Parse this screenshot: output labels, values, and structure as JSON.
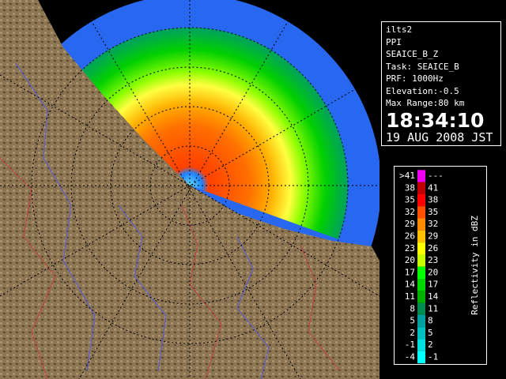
{
  "station": "ilts2",
  "mode": "PPI",
  "product": "SEAICE_B_Z",
  "task": "Task: SEAICE_B",
  "prf": "PRF: 1000Hz",
  "elevation": "Elevation:-0.5",
  "max_range": "Max Range:80 km",
  "time": "18:34:10",
  "date": "19 AUG 2008 JST",
  "legend": {
    "title": "Reflectivity in dBZ",
    "rows": [
      {
        "lower": ">41",
        "upper": "---",
        "color": "#f000f0"
      },
      {
        "lower": "38",
        "upper": "41",
        "color": "#c00000"
      },
      {
        "lower": "35",
        "upper": "38",
        "color": "#ff0000"
      },
      {
        "lower": "32",
        "upper": "35",
        "color": "#ff5000"
      },
      {
        "lower": "29",
        "upper": "32",
        "color": "#ff8c00"
      },
      {
        "lower": "26",
        "upper": "29",
        "color": "#ffc000"
      },
      {
        "lower": "23",
        "upper": "26",
        "color": "#ffff00"
      },
      {
        "lower": "20",
        "upper": "23",
        "color": "#c8ff00"
      },
      {
        "lower": "17",
        "upper": "20",
        "color": "#00ff00"
      },
      {
        "lower": "14",
        "upper": "17",
        "color": "#00d800"
      },
      {
        "lower": "11",
        "upper": "14",
        "color": "#00b000"
      },
      {
        "lower": "8",
        "upper": "11",
        "color": "#008c50"
      },
      {
        "lower": "5",
        "upper": "8",
        "color": "#00a0a0"
      },
      {
        "lower": "2",
        "upper": "5",
        "color": "#00c0c0"
      },
      {
        "lower": "-1",
        "upper": "2",
        "color": "#00e0e0"
      },
      {
        "lower": "-4",
        "upper": "-1",
        "color": "#00ffff"
      }
    ]
  }
}
